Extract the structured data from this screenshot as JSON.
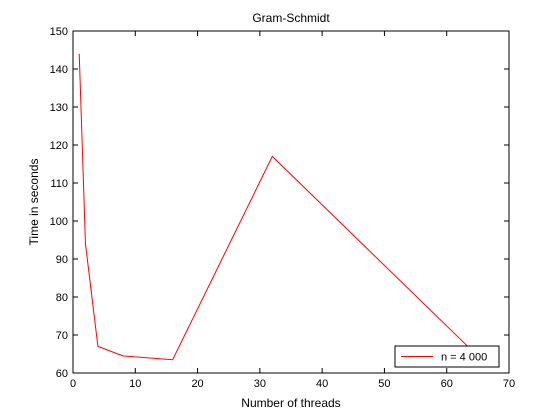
{
  "chart_data": {
    "type": "line",
    "title": "Gram-Schmidt",
    "xlabel": "Number of threads",
    "ylabel": "Time in seconds",
    "xlim": [
      0,
      70
    ],
    "ylim": [
      60,
      150
    ],
    "xticks": [
      0,
      10,
      20,
      30,
      40,
      50,
      60,
      70
    ],
    "yticks": [
      60,
      70,
      80,
      90,
      100,
      110,
      120,
      130,
      140,
      150
    ],
    "grid": false,
    "legend_position": "bottom-right",
    "series": [
      {
        "name": "n = 4 000",
        "color": "#ff0000",
        "x": [
          1,
          2,
          4,
          8,
          16,
          32,
          64
        ],
        "y": [
          144,
          94,
          67,
          64.5,
          63.5,
          117,
          66
        ]
      }
    ]
  }
}
